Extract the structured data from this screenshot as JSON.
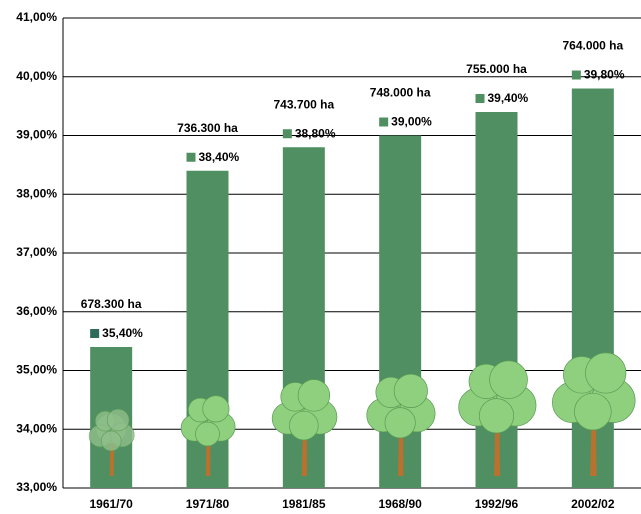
{
  "chart_data": {
    "type": "bar",
    "categories": [
      "1961/70",
      "1971/80",
      "1981/85",
      "1968/90",
      "1992/96",
      "2002/02"
    ],
    "values": [
      35.4,
      38.4,
      38.8,
      39.0,
      39.4,
      39.8
    ],
    "value_labels": [
      "35,40%",
      "38,40%",
      "38,80%",
      "39,00%",
      "39,40%",
      "39,80%"
    ],
    "annotations": [
      "678.300 ha",
      "736.300 ha",
      "743.700 ha",
      "748.000 ha",
      "755.000 ha",
      "764.000 ha"
    ],
    "color": "#4f8f62",
    "ylim": [
      33,
      41
    ],
    "yticks": [
      {
        "value": 33,
        "label": "33,00%"
      },
      {
        "value": 34,
        "label": "34,00%"
      },
      {
        "value": 35,
        "label": "35,00%"
      },
      {
        "value": 36,
        "label": "36,00%"
      },
      {
        "value": 37,
        "label": "37,00%"
      },
      {
        "value": 38,
        "label": "38,00%"
      },
      {
        "value": 39,
        "label": "39,00%"
      },
      {
        "value": 40,
        "label": "40,00%"
      },
      {
        "value": 41,
        "label": "41,00%"
      }
    ],
    "grid": true
  }
}
